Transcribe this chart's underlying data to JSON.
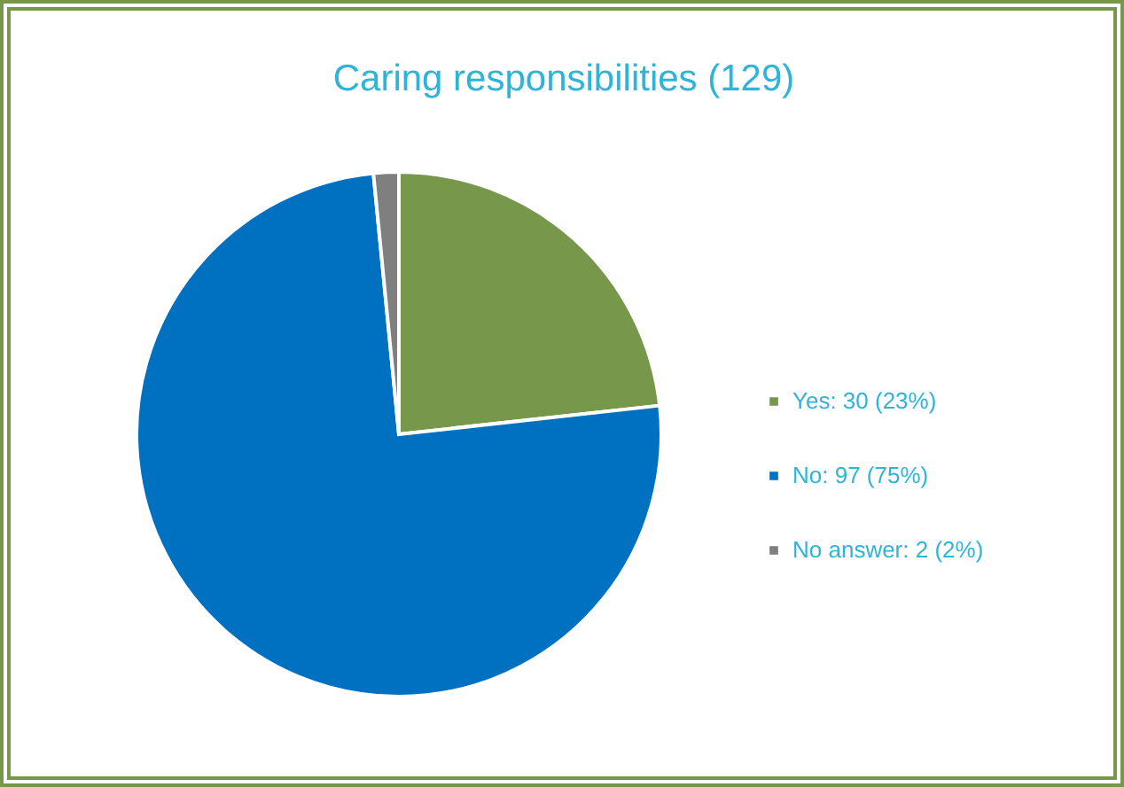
{
  "chart_data": {
    "type": "pie",
    "title": "Caring responsibilities (129)",
    "categories": [
      "Yes: 30 (23%)",
      "No: 97 (75%)",
      "No answer: 2 (2%)"
    ],
    "values": [
      30,
      97,
      2
    ],
    "colors": [
      "#77974b",
      "#0070c0",
      "#7f7f7f"
    ],
    "legend": "right"
  }
}
